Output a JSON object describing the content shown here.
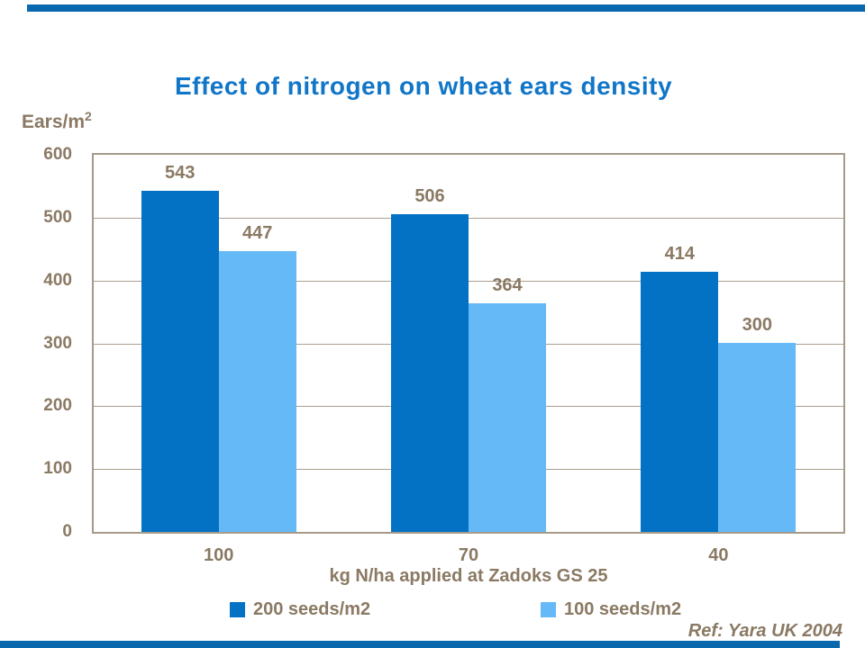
{
  "page": {
    "title": "Effect of nitrogen on wheat ears density",
    "y_axis_unit": "Ears/m",
    "y_axis_unit_sup": "2",
    "ref_credit": "Ref: Yara UK 2004"
  },
  "colors": {
    "accent_strip": "#0a68ae",
    "title_blue": "#1176c8",
    "series_dark_blue": "#0472c4",
    "series_light_blue": "#66b9f7",
    "text_brown": "#8a7963",
    "frame_tan": "#a69a89",
    "gridline_tan": "#ab9f8f"
  },
  "chart_data": {
    "type": "bar",
    "title": "Effect of nitrogen on wheat ears density",
    "categories": [
      "100",
      "70",
      "40"
    ],
    "series": [
      {
        "name": "200 seeds/m2",
        "color": "#0472c4",
        "values": [
          543,
          506,
          414
        ]
      },
      {
        "name": "100 seeds/m2",
        "color": "#66b9f7",
        "values": [
          447,
          364,
          300
        ]
      }
    ],
    "xlabel": "kg N/ha applied at Zadoks GS 25",
    "ylabel": "Ears/m2",
    "ylim": [
      0,
      600
    ],
    "ytick_step": 100,
    "grid": true,
    "data_labels": true,
    "legend_position": "bottom"
  }
}
